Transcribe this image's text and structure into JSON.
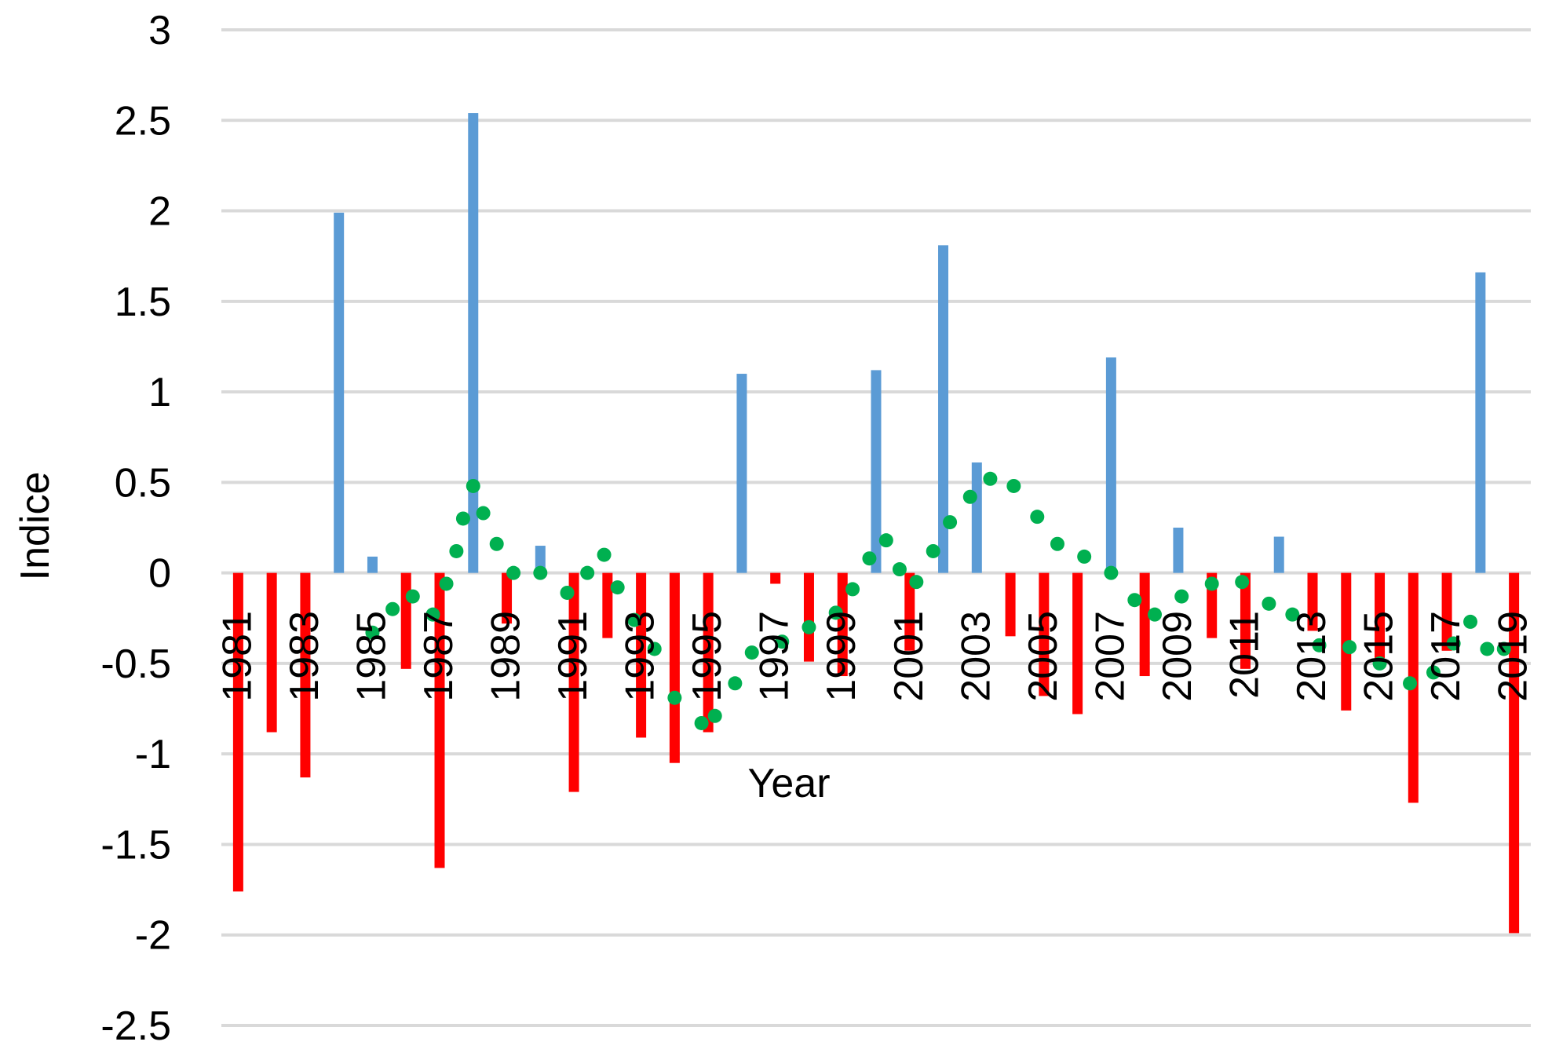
{
  "chart_data": {
    "type": "bar",
    "xlabel": "Year",
    "ylabel": "Indice",
    "ylim": [
      -2.5,
      3
    ],
    "yticks": [
      3,
      2.5,
      2,
      1.5,
      1,
      0.5,
      0,
      -0.5,
      -1,
      -1.5,
      -2,
      -2.5
    ],
    "grid": true,
    "x_tick_labels": [
      "1981",
      "1983",
      "1985",
      "1987",
      "1989",
      "1991",
      "1993",
      "1995",
      "1997",
      "1999",
      "2001",
      "2003",
      "2005",
      "2007",
      "2009",
      "2011",
      "2013",
      "2015",
      "2017",
      "2019"
    ],
    "years": [
      1981,
      1982,
      1983,
      1984,
      1985,
      1986,
      1987,
      1988,
      1989,
      1990,
      1991,
      1992,
      1993,
      1994,
      1995,
      1996,
      1997,
      1998,
      1999,
      2000,
      2001,
      2002,
      2003,
      2004,
      2005,
      2006,
      2007,
      2008,
      2009,
      2010,
      2011,
      2012,
      2013,
      2014,
      2015,
      2016,
      2017,
      2018,
      2019
    ],
    "values": [
      -1.76,
      -0.88,
      -1.13,
      1.99,
      0.09,
      -0.53,
      -1.63,
      2.54,
      -0.28,
      0.15,
      -1.21,
      -0.36,
      -0.91,
      -1.05,
      -0.88,
      1.1,
      -0.06,
      -0.49,
      -0.57,
      1.12,
      -0.43,
      1.81,
      0.61,
      -0.35,
      -0.68,
      -0.78,
      1.19,
      -0.57,
      0.25,
      -0.36,
      -0.53,
      0.2,
      -0.32,
      -0.76,
      -0.47,
      -1.27,
      -0.43,
      1.66,
      -1.99
    ],
    "colors": {
      "positive": "#5b9bd5",
      "negative": "#ff0000",
      "trend": "#00b050",
      "grid": "#d9d9d9"
    },
    "trend": {
      "style": "dotted",
      "x": [
        1985,
        1985.6,
        1986.2,
        1986.8,
        1987.2,
        1987.5,
        1987.7,
        1988,
        1988.3,
        1988.7,
        1989.2,
        1990,
        1990.8,
        1991.4,
        1991.9,
        1992.3,
        1992.8,
        1993.4,
        1994,
        1994.8,
        1995.2,
        1995.8,
        1996.3,
        1997.2,
        1998,
        1998.8,
        1999.3,
        1999.8,
        2000.3,
        2000.7,
        2001.2,
        2001.7,
        2002.2,
        2002.8,
        2003.4,
        2004.1,
        2004.8,
        2005.4,
        2006.2,
        2007,
        2007.7,
        2008.3,
        2009.1,
        2010,
        2010.9,
        2011.7,
        2012.4,
        2013.2,
        2014.1,
        2015,
        2015.9,
        2016.6,
        2017.2,
        2017.7,
        2018.2,
        2018.7
      ],
      "y": [
        -0.33,
        -0.2,
        -0.13,
        -0.23,
        -0.06,
        0.12,
        0.3,
        0.48,
        0.33,
        0.16,
        0,
        0,
        -0.11,
        0,
        0.1,
        -0.08,
        -0.26,
        -0.42,
        -0.69,
        -0.83,
        -0.79,
        -0.61,
        -0.44,
        -0.38,
        -0.3,
        -0.22,
        -0.09,
        0.08,
        0.18,
        0.02,
        -0.05,
        0.12,
        0.28,
        0.42,
        0.52,
        0.48,
        0.31,
        0.16,
        0.09,
        0,
        -0.15,
        -0.23,
        -0.13,
        -0.06,
        -0.05,
        -0.17,
        -0.23,
        -0.4,
        -0.41,
        -0.5,
        -0.61,
        -0.55,
        -0.39,
        -0.27,
        -0.42,
        -0.42
      ]
    }
  }
}
